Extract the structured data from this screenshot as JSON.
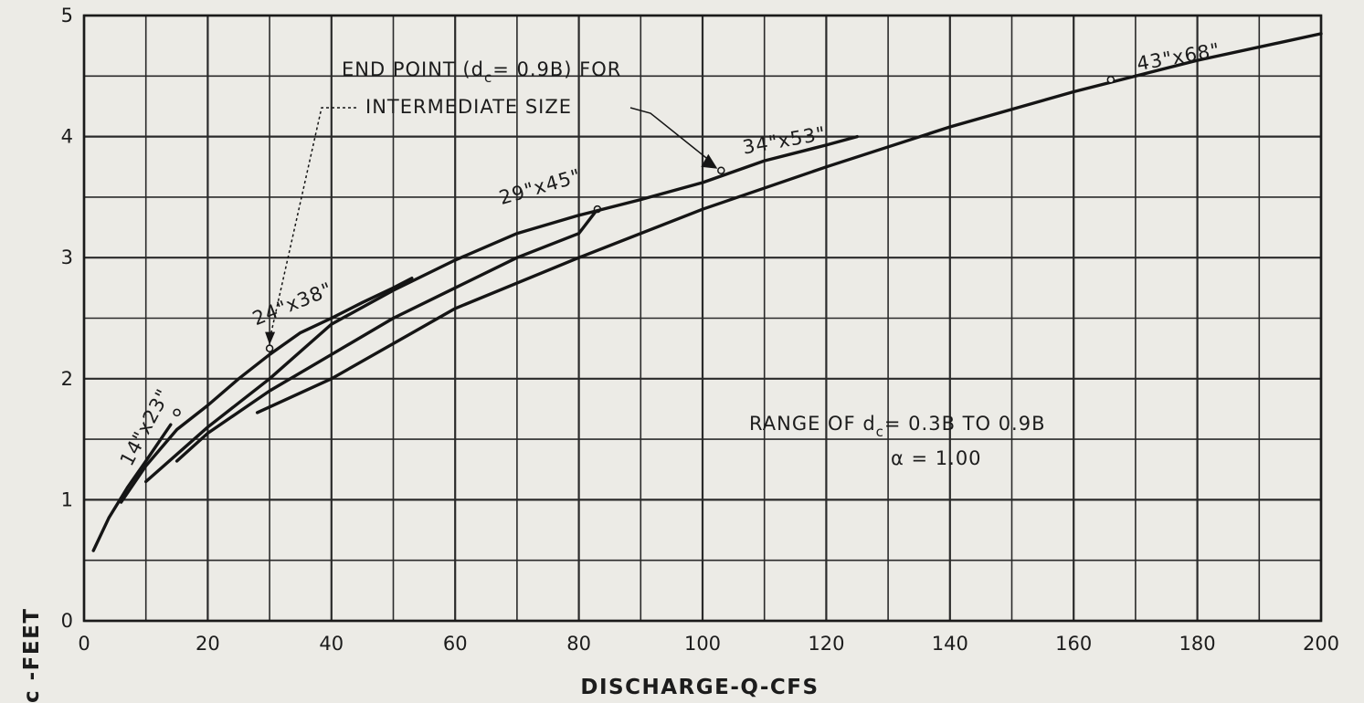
{
  "chart_data": {
    "type": "line",
    "xlabel": "DISCHARGE-Q-CFS",
    "ylabel_visible": "c -FEET",
    "xlim": [
      0,
      200
    ],
    "ylim": [
      0,
      5
    ],
    "x_ticks": [
      "0",
      "20",
      "40",
      "60",
      "80",
      "100",
      "120",
      "140",
      "160",
      "180",
      "200"
    ],
    "y_ticks": [
      "0",
      "1",
      "2",
      "3",
      "4",
      "5"
    ],
    "grid": true,
    "series": [
      {
        "name": "14\"x23\"",
        "points": [
          [
            1.5,
            0.58
          ],
          [
            4,
            0.85
          ],
          [
            7,
            1.1
          ],
          [
            10,
            1.32
          ],
          [
            14,
            1.62
          ]
        ],
        "end_point": [
          15,
          1.72
        ]
      },
      {
        "name": "24\"x38\"",
        "points": [
          [
            6,
            0.98
          ],
          [
            10,
            1.28
          ],
          [
            15,
            1.58
          ],
          [
            20,
            1.78
          ],
          [
            25,
            2.0
          ],
          [
            30,
            2.2
          ],
          [
            35,
            2.38
          ],
          [
            40,
            2.5
          ],
          [
            45,
            2.63
          ],
          [
            50,
            2.75
          ],
          [
            53,
            2.83
          ]
        ],
        "end_point": [
          30,
          2.25
        ]
      },
      {
        "name": "29\"x45\"",
        "points": [
          [
            15,
            1.32
          ],
          [
            20,
            1.55
          ],
          [
            30,
            1.9
          ],
          [
            40,
            2.2
          ],
          [
            50,
            2.5
          ],
          [
            60,
            2.75
          ],
          [
            70,
            3.0
          ],
          [
            80,
            3.2
          ],
          [
            83,
            3.4
          ]
        ],
        "end_point": [
          83,
          3.4
        ]
      },
      {
        "name": "34\"x53\"",
        "points": [
          [
            10,
            1.15
          ],
          [
            20,
            1.6
          ],
          [
            30,
            2.0
          ],
          [
            40,
            2.45
          ],
          [
            50,
            2.73
          ],
          [
            60,
            2.98
          ],
          [
            70,
            3.2
          ],
          [
            80,
            3.35
          ],
          [
            90,
            3.48
          ],
          [
            100,
            3.62
          ],
          [
            110,
            3.8
          ],
          [
            120,
            3.93
          ],
          [
            125,
            4.0
          ]
        ],
        "end_point": [
          103,
          3.72
        ]
      },
      {
        "name": "43\"x68\"",
        "points": [
          [
            28,
            1.72
          ],
          [
            40,
            2.0
          ],
          [
            60,
            2.58
          ],
          [
            80,
            3.0
          ],
          [
            100,
            3.4
          ],
          [
            120,
            3.75
          ],
          [
            140,
            4.08
          ],
          [
            160,
            4.37
          ],
          [
            180,
            4.63
          ],
          [
            200,
            4.85
          ]
        ],
        "end_point": [
          166,
          4.47
        ]
      }
    ],
    "annotations": {
      "end_point_line1": "END POINT (d",
      "end_point_sub": "c",
      "end_point_line1b": "= 0.9B) FOR",
      "end_point_line2": "INTERMEDIATE SIZE",
      "range_text": "RANGE OF d",
      "range_sub": "c",
      "range_text_b": "= 0.3B TO 0.9B",
      "alpha_text": "α = 1.00"
    }
  }
}
